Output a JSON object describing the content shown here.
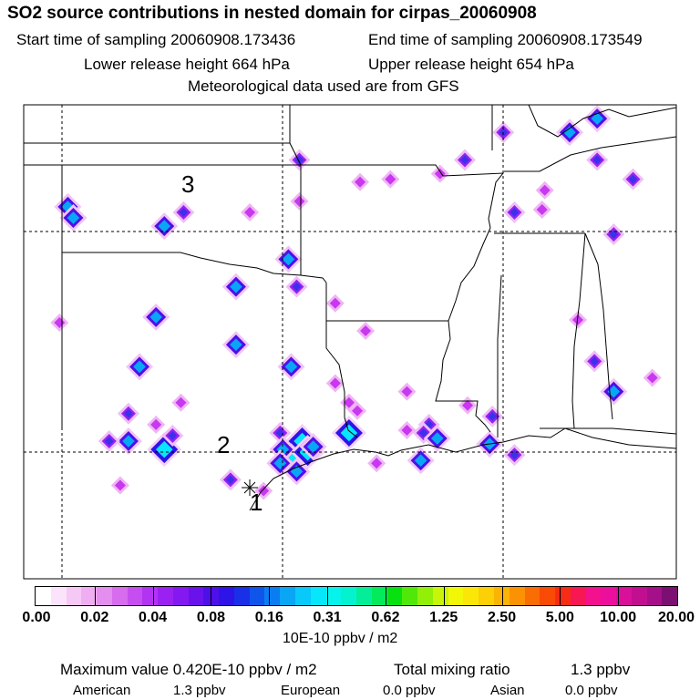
{
  "title": "SO2 source contributions in nested domain for cirpas_20060908",
  "header": {
    "start_label": "Start time of sampling 20060908.173436",
    "end_label": "End time of sampling 20060908.173549",
    "lower_label": "Lower release height  664 hPa",
    "upper_label": "Upper release height  654 hPa",
    "met_label": "Meteorological data used are from GFS"
  },
  "map": {
    "region_labels": [
      "1",
      "2",
      "3"
    ],
    "sources": [
      {
        "lon": -103.4,
        "lat": 38.3,
        "level": 2
      },
      {
        "lon": -103.2,
        "lat": 37.9,
        "level": 2
      },
      {
        "lon": -99.9,
        "lat": 37.6,
        "level": 2
      },
      {
        "lon": -99.2,
        "lat": 38.1,
        "level": 1
      },
      {
        "lon": -95.4,
        "lat": 36.4,
        "level": 2
      },
      {
        "lon": -93.7,
        "lat": 34.8,
        "level": 0
      },
      {
        "lon": -95.3,
        "lat": 32.5,
        "level": 2
      },
      {
        "lon": -93.2,
        "lat": 31.2,
        "level": 0
      },
      {
        "lon": -92.6,
        "lat": 33.8,
        "level": 0
      },
      {
        "lon": -91.1,
        "lat": 31.6,
        "level": 0
      },
      {
        "lon": -90.3,
        "lat": 30.4,
        "level": 1
      },
      {
        "lon": -88.9,
        "lat": 31.1,
        "level": 0
      },
      {
        "lon": -92.2,
        "lat": 29.0,
        "level": 0
      },
      {
        "lon": -90.6,
        "lat": 29.1,
        "level": 2
      },
      {
        "lon": -88.1,
        "lat": 29.7,
        "level": 2
      },
      {
        "lon": -87.2,
        "lat": 29.3,
        "level": 1
      },
      {
        "lon": -83.6,
        "lat": 31.6,
        "level": 2
      },
      {
        "lon": -84.3,
        "lat": 32.7,
        "level": 1
      },
      {
        "lon": -84.9,
        "lat": 34.2,
        "level": 0
      },
      {
        "lon": -82.2,
        "lat": 32.1,
        "level": 0
      },
      {
        "lon": -83.6,
        "lat": 37.3,
        "level": 1
      },
      {
        "lon": -86.1,
        "lat": 38.9,
        "level": 0
      },
      {
        "lon": -87.2,
        "lat": 38.1,
        "level": 1
      },
      {
        "lon": -86.2,
        "lat": 38.2,
        "level": 0
      },
      {
        "lon": -87.6,
        "lat": 41.0,
        "level": 1
      },
      {
        "lon": -85.2,
        "lat": 41.0,
        "level": 2
      },
      {
        "lon": -84.2,
        "lat": 41.5,
        "level": 2
      },
      {
        "lon": -84.2,
        "lat": 40.0,
        "level": 1
      },
      {
        "lon": -82.9,
        "lat": 39.3,
        "level": 1
      },
      {
        "lon": -89.0,
        "lat": 40.0,
        "level": 1
      },
      {
        "lon": -89.9,
        "lat": 39.5,
        "level": 0
      },
      {
        "lon": -92.8,
        "lat": 39.2,
        "level": 0
      },
      {
        "lon": -91.7,
        "lat": 39.3,
        "level": 0
      },
      {
        "lon": -95.0,
        "lat": 40.0,
        "level": 1
      },
      {
        "lon": -95.0,
        "lat": 38.5,
        "level": 0
      },
      {
        "lon": -96.8,
        "lat": 38.1,
        "level": 0
      },
      {
        "lon": -95.1,
        "lat": 35.4,
        "level": 1
      },
      {
        "lon": -100.2,
        "lat": 34.3,
        "level": 2
      },
      {
        "lon": -100.8,
        "lat": 32.5,
        "level": 2
      },
      {
        "lon": -99.3,
        "lat": 31.2,
        "level": 0
      },
      {
        "lon": -100.2,
        "lat": 30.4,
        "level": 0
      },
      {
        "lon": -101.2,
        "lat": 29.8,
        "level": 2
      },
      {
        "lon": -101.9,
        "lat": 29.8,
        "level": 1
      },
      {
        "lon": -99.9,
        "lat": 29.5,
        "level": 3
      },
      {
        "lon": -99.6,
        "lat": 30.0,
        "level": 1
      },
      {
        "lon": -101.2,
        "lat": 30.8,
        "level": 1
      },
      {
        "lon": -97.5,
        "lat": 28.4,
        "level": 1
      },
      {
        "lon": -96.3,
        "lat": 28.0,
        "level": 0
      },
      {
        "lon": -101.5,
        "lat": 28.2,
        "level": 0
      },
      {
        "lon": -93.7,
        "lat": 31.9,
        "level": 0
      },
      {
        "lon": -92.9,
        "lat": 30.9,
        "level": 0
      },
      {
        "lon": -97.3,
        "lat": 33.3,
        "level": 2
      },
      {
        "lon": -97.3,
        "lat": 35.4,
        "level": 2
      },
      {
        "lon": -103.7,
        "lat": 34.1,
        "level": 0
      },
      {
        "lon": -95.7,
        "lat": 30.1,
        "level": 1
      },
      {
        "lon": -91.1,
        "lat": 30.2,
        "level": 0
      },
      {
        "lon": -88.0,
        "lat": 30.7,
        "level": 1
      },
      {
        "lon": -90.5,
        "lat": 30.1,
        "level": 1
      },
      {
        "lon": -90.0,
        "lat": 29.9,
        "level": 2
      },
      {
        "lon": -93.2,
        "lat": 30.1,
        "level": 3
      },
      {
        "lon": -95.1,
        "lat": 29.4,
        "level": 3
      },
      {
        "lon": -94.9,
        "lat": 29.8,
        "level": 3
      },
      {
        "lon": -95.3,
        "lat": 29.1,
        "level": 3
      },
      {
        "lon": -94.7,
        "lat": 29.4,
        "level": 3
      },
      {
        "lon": -95.6,
        "lat": 29.5,
        "level": 2
      },
      {
        "lon": -94.5,
        "lat": 29.6,
        "level": 2
      },
      {
        "lon": -95.7,
        "lat": 29.0,
        "level": 2
      },
      {
        "lon": -95.1,
        "lat": 28.7,
        "level": 2
      }
    ]
  },
  "colorbar": {
    "colors": [
      "#ffffff",
      "#fbe3fb",
      "#f5c8f5",
      "#efaef1",
      "#e48ef0",
      "#d76cee",
      "#c64ef0",
      "#b233f2",
      "#9a21f2",
      "#8418f0",
      "#6a12ec",
      "#4d10e8",
      "#2e14e6",
      "#1a2fe8",
      "#0f55ec",
      "#0a7df2",
      "#09a6f6",
      "#08c9f9",
      "#07e6fa",
      "#05f3ea",
      "#05f2cf",
      "#04ee9a",
      "#03ea5a",
      "#07e10f",
      "#4fe809",
      "#92ef08",
      "#c9f50a",
      "#f2f708",
      "#fbe707",
      "#fdcf06",
      "#fbb405",
      "#fb9203",
      "#fa6c04",
      "#f94a06",
      "#f72c14",
      "#f71752",
      "#f4118d",
      "#ec0f9e",
      "#d8109a",
      "#c10f90",
      "#a5108a",
      "#7c1072"
    ],
    "tick_labels": [
      "0.00",
      "0.02",
      "0.04",
      "0.08",
      "0.16",
      "0.31",
      "0.62",
      "1.25",
      "2.50",
      "5.00",
      "10.00",
      "20.00"
    ],
    "units": "10E-10 ppbv / m2"
  },
  "footer": {
    "max_label": "Maximum value  0.420E-10 ppbv / m2",
    "total_label": "Total mixing ratio",
    "total_value": "1.3 ppbv",
    "american_label": "American",
    "american_value": "1.3 ppbv",
    "european_label": "European",
    "european_value": "0.0 ppbv",
    "asian_label": "Asian",
    "asian_value": "0.0 ppbv"
  }
}
